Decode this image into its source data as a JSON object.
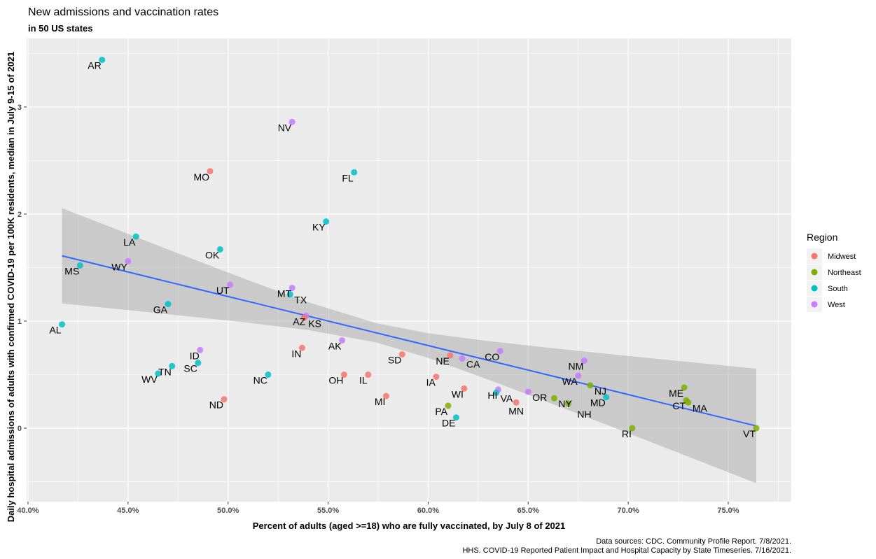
{
  "chart_data": {
    "type": "scatter",
    "title": "New admissions and vaccination rates",
    "subtitle": "in 50 US states",
    "xlabel": "Percent of adults (aged >=18) who are fully vaccinated, by July 8 of 2021",
    "ylabel": "Daily hospital admissions of adults with confirmed COVID-19 per 100K residents, median in July 9-15 of 2021",
    "caption": [
      "Data sources: CDC. Community Profile Report. 7/8/2021.",
      "HHS. COVID-19 Reported Patient Impact and Hospital Capacity by State Timeseries. 7/16/2021."
    ],
    "xlim": [
      39.93,
      78.15
    ],
    "ylim": [
      -0.686,
      3.64
    ],
    "x_ticks": [
      40,
      45,
      50,
      55,
      60,
      65,
      70,
      75
    ],
    "x_tick_labels": [
      "40.0%",
      "45.0%",
      "50.0%",
      "55.0%",
      "60.0%",
      "65.0%",
      "70.0%",
      "75.0%"
    ],
    "y_ticks": [
      0,
      1,
      2,
      3
    ],
    "y_tick_labels": [
      "0",
      "1",
      "2",
      "3"
    ],
    "grid": true,
    "legend": {
      "title": "Region",
      "placement": "right",
      "entries": [
        {
          "name": "Midwest",
          "color": "#F8766D"
        },
        {
          "name": "Northeast",
          "color": "#7CAE00"
        },
        {
          "name": "South",
          "color": "#00BFC4"
        },
        {
          "name": "West",
          "color": "#C77CFF"
        }
      ]
    },
    "points": [
      {
        "state": "AR",
        "region": "South",
        "x": 43.7,
        "y": 3.44
      },
      {
        "state": "NV",
        "region": "West",
        "x": 53.2,
        "y": 2.86
      },
      {
        "state": "MO",
        "region": "Midwest",
        "x": 49.1,
        "y": 2.4
      },
      {
        "state": "FL",
        "region": "South",
        "x": 56.3,
        "y": 2.39
      },
      {
        "state": "KY",
        "region": "South",
        "x": 54.9,
        "y": 1.93
      },
      {
        "state": "LA",
        "region": "South",
        "x": 45.4,
        "y": 1.79
      },
      {
        "state": "OK",
        "region": "South",
        "x": 49.6,
        "y": 1.67
      },
      {
        "state": "MS",
        "region": "South",
        "x": 42.6,
        "y": 1.52
      },
      {
        "state": "WY",
        "region": "West",
        "x": 45.0,
        "y": 1.56
      },
      {
        "state": "UT",
        "region": "West",
        "x": 50.1,
        "y": 1.34
      },
      {
        "state": "MT",
        "region": "West",
        "x": 53.2,
        "y": 1.31
      },
      {
        "state": "TX",
        "region": "South",
        "x": 53.1,
        "y": 1.25
      },
      {
        "state": "GA",
        "region": "South",
        "x": 47.0,
        "y": 1.16
      },
      {
        "state": "AZ",
        "region": "West",
        "x": 53.9,
        "y": 1.05
      },
      {
        "state": "KS",
        "region": "Midwest",
        "x": 53.8,
        "y": 1.03
      },
      {
        "state": "AL",
        "region": "South",
        "x": 41.7,
        "y": 0.97
      },
      {
        "state": "AK",
        "region": "West",
        "x": 55.7,
        "y": 0.82
      },
      {
        "state": "IN",
        "region": "Midwest",
        "x": 53.7,
        "y": 0.75
      },
      {
        "state": "ID",
        "region": "West",
        "x": 48.6,
        "y": 0.73
      },
      {
        "state": "SD",
        "region": "Midwest",
        "x": 58.7,
        "y": 0.69
      },
      {
        "state": "NE",
        "region": "Midwest",
        "x": 61.1,
        "y": 0.68
      },
      {
        "state": "CA",
        "region": "West",
        "x": 61.7,
        "y": 0.65
      },
      {
        "state": "CO",
        "region": "West",
        "x": 63.6,
        "y": 0.72
      },
      {
        "state": "SC",
        "region": "South",
        "x": 48.5,
        "y": 0.61
      },
      {
        "state": "TN",
        "region": "South",
        "x": 47.2,
        "y": 0.58
      },
      {
        "state": "WV",
        "region": "South",
        "x": 46.5,
        "y": 0.51
      },
      {
        "state": "NC",
        "region": "South",
        "x": 52.0,
        "y": 0.5
      },
      {
        "state": "OH",
        "region": "Midwest",
        "x": 55.8,
        "y": 0.5
      },
      {
        "state": "IL",
        "region": "Midwest",
        "x": 57.0,
        "y": 0.5
      },
      {
        "state": "IA",
        "region": "Midwest",
        "x": 60.4,
        "y": 0.48
      },
      {
        "state": "NM",
        "region": "West",
        "x": 67.8,
        "y": 0.63
      },
      {
        "state": "WA",
        "region": "West",
        "x": 67.5,
        "y": 0.49
      },
      {
        "state": "NJ",
        "region": "Northeast",
        "x": 68.1,
        "y": 0.4
      },
      {
        "state": "WI",
        "region": "Midwest",
        "x": 61.8,
        "y": 0.37
      },
      {
        "state": "HI",
        "region": "West",
        "x": 63.5,
        "y": 0.36
      },
      {
        "state": "VA",
        "region": "South",
        "x": 63.4,
        "y": 0.33
      },
      {
        "state": "OR",
        "region": "West",
        "x": 65.0,
        "y": 0.34
      },
      {
        "state": "MD",
        "region": "South",
        "x": 68.9,
        "y": 0.29
      },
      {
        "state": "NY",
        "region": "Northeast",
        "x": 66.3,
        "y": 0.28
      },
      {
        "state": "NH",
        "region": "Northeast",
        "x": 67.0,
        "y": 0.23
      },
      {
        "state": "MN",
        "region": "Midwest",
        "x": 64.4,
        "y": 0.24
      },
      {
        "state": "ND",
        "region": "Midwest",
        "x": 49.8,
        "y": 0.27
      },
      {
        "state": "MI",
        "region": "Midwest",
        "x": 57.9,
        "y": 0.3
      },
      {
        "state": "PA",
        "region": "Northeast",
        "x": 61.0,
        "y": 0.21
      },
      {
        "state": "DE",
        "region": "South",
        "x": 61.4,
        "y": 0.1
      },
      {
        "state": "ME",
        "region": "Northeast",
        "x": 72.8,
        "y": 0.38
      },
      {
        "state": "CT",
        "region": "Northeast",
        "x": 72.9,
        "y": 0.26
      },
      {
        "state": "MA",
        "region": "Northeast",
        "x": 73.0,
        "y": 0.24
      },
      {
        "state": "RI",
        "region": "Northeast",
        "x": 70.2,
        "y": 0.0
      },
      {
        "state": "VT",
        "region": "Northeast",
        "x": 76.4,
        "y": 0.0
      }
    ],
    "smooth": {
      "method": "linear fit with confidence band",
      "line_color": "#3366FF",
      "x": [
        41.7,
        45,
        48,
        51,
        54,
        57.4,
        60,
        63,
        66,
        69,
        72,
        76.4
      ],
      "fit": [
        1.61,
        1.459,
        1.321,
        1.184,
        1.047,
        0.891,
        0.772,
        0.634,
        0.497,
        0.36,
        0.222,
        0.021
      ],
      "lower": [
        1.165,
        1.103,
        1.045,
        0.985,
        0.917,
        0.801,
        0.657,
        0.454,
        0.242,
        0.026,
        -0.193,
        -0.514
      ],
      "upper": [
        2.055,
        1.815,
        1.597,
        1.383,
        1.177,
        0.981,
        0.887,
        0.814,
        0.752,
        0.694,
        0.637,
        0.556
      ]
    }
  }
}
